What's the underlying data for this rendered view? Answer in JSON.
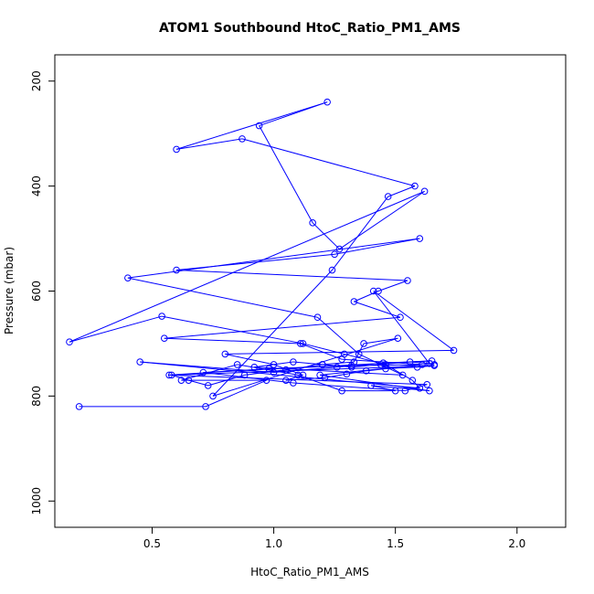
{
  "chart_data": {
    "type": "line",
    "title": "ATOM1 Southbound HtoC_Ratio_PM1_AMS",
    "xlabel": "HtoC_Ratio_PM1_AMS",
    "ylabel": "Pressure (mbar)",
    "xlim": [
      0.1,
      2.2
    ],
    "ylim": [
      1050,
      150
    ],
    "y_inverted": true,
    "xticks": [
      0.5,
      1.0,
      1.5,
      2.0
    ],
    "xtick_labels": [
      "0.5",
      "1.0",
      "1.5",
      "2.0"
    ],
    "yticks": [
      200,
      400,
      600,
      800,
      1000
    ],
    "ytick_labels": [
      "200",
      "400",
      "600",
      "800",
      "1000"
    ],
    "grid": false,
    "legend": "none",
    "series": [
      {
        "color": "#0000ff",
        "marker": "open-circle",
        "x": [
          0.2,
          0.72,
          0.97,
          0.62,
          0.85,
          1.1,
          1.28,
          1.5,
          1.4,
          1.64,
          1.19,
          1.61,
          1.28,
          1.11,
          0.55,
          1.52,
          1.33,
          1.43,
          1.55,
          0.6,
          1.25,
          1.6,
          0.4,
          1.18,
          1.35,
          1.53,
          0.92,
          1.08,
          1.2,
          1.32,
          1.44,
          1.56,
          1.64,
          1.41,
          1.74,
          0.8,
          1.0,
          1.12,
          1.05,
          1.21,
          1.3,
          1.38,
          1.46,
          1.59,
          1.66,
          0.58,
          0.65,
          0.73,
          0.88,
          1.05,
          1.2,
          1.33,
          1.37,
          1.51,
          0.75,
          1.24,
          1.47,
          1.58,
          0.87,
          0.6,
          1.22,
          0.94,
          1.16,
          1.27,
          1.62,
          0.16,
          0.54,
          1.12,
          1.29,
          1.46,
          1.57,
          1.6,
          0.45,
          1.0,
          1.26,
          1.45,
          1.65,
          0.71,
          1.08,
          1.54,
          1.63,
          0.57,
          0.98,
          1.32,
          1.66
        ],
        "y": [
          820,
          820,
          770,
          770,
          740,
          760,
          790,
          790,
          780,
          790,
          760,
          740,
          730,
          700,
          690,
          650,
          620,
          600,
          580,
          560,
          530,
          500,
          575,
          650,
          720,
          760,
          745,
          735,
          740,
          745,
          740,
          735,
          738,
          600,
          713,
          720,
          740,
          760,
          770,
          765,
          758,
          752,
          748,
          745,
          742,
          760,
          770,
          780,
          760,
          750,
          740,
          735,
          700,
          690,
          800,
          560,
          420,
          400,
          310,
          330,
          240,
          285,
          470,
          520,
          410,
          697,
          648,
          700,
          720,
          740,
          770,
          785,
          735,
          755,
          745,
          737,
          733,
          755,
          775,
          790,
          778,
          760,
          748,
          742,
          740
        ]
      }
    ]
  }
}
